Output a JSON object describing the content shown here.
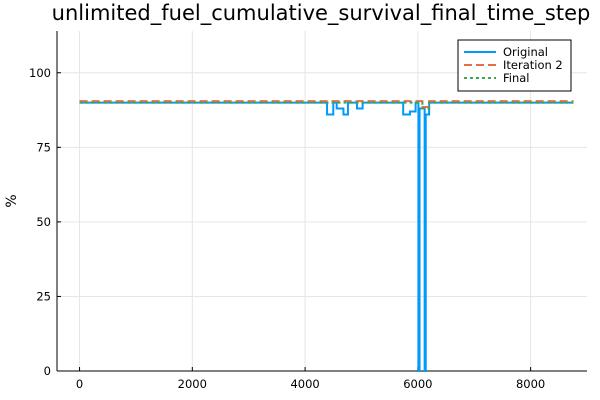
{
  "chart_data": {
    "type": "line",
    "title": "unlimited_fuel_cumulative_survival_final_time_step",
    "xlabel": "",
    "ylabel": "%",
    "xlim": [
      -400,
      9000
    ],
    "ylim": [
      0,
      114
    ],
    "xticks": [
      0,
      2000,
      4000,
      6000,
      8000
    ],
    "xtick_labels": [
      "0",
      "2000",
      "4000",
      "6000",
      "8000"
    ],
    "yticks": [
      0,
      25,
      50,
      75,
      100
    ],
    "ytick_labels": [
      "0",
      "25",
      "50",
      "75",
      "100"
    ],
    "grid": true,
    "legend_position": "top-right",
    "series": [
      {
        "name": "Original",
        "color": "#009AFA",
        "dash": "solid",
        "x": [
          0,
          4390,
          4390,
          4500,
          4500,
          4560,
          4560,
          4680,
          4680,
          4760,
          4760,
          4920,
          4920,
          5020,
          5020,
          5740,
          5740,
          5860,
          5860,
          5960,
          5960,
          6010,
          6010,
          6030,
          6030,
          6120,
          6120,
          6140,
          6140,
          6200,
          6200,
          6360,
          6360,
          8760
        ],
        "y": [
          90,
          90,
          86,
          86,
          90,
          90,
          88,
          88,
          86,
          86,
          90,
          90,
          88,
          88,
          90,
          90,
          86,
          86,
          87,
          87,
          90,
          90,
          0,
          0,
          88,
          88,
          0,
          0,
          86,
          86,
          90,
          90,
          90,
          90
        ]
      },
      {
        "name": "Iteration 2",
        "color": "#E36F47",
        "dash": "dashed",
        "x": [
          0,
          6080,
          6080,
          6200,
          6200,
          8760
        ],
        "y": [
          90.5,
          90.5,
          88.5,
          88.5,
          90.5,
          90.5
        ]
      },
      {
        "name": "Final",
        "color": "#3EA44E",
        "dash": "dotted",
        "x": [
          0,
          6080,
          6080,
          6200,
          6200,
          8760
        ],
        "y": [
          90,
          90,
          88,
          88,
          90,
          90
        ]
      }
    ]
  }
}
